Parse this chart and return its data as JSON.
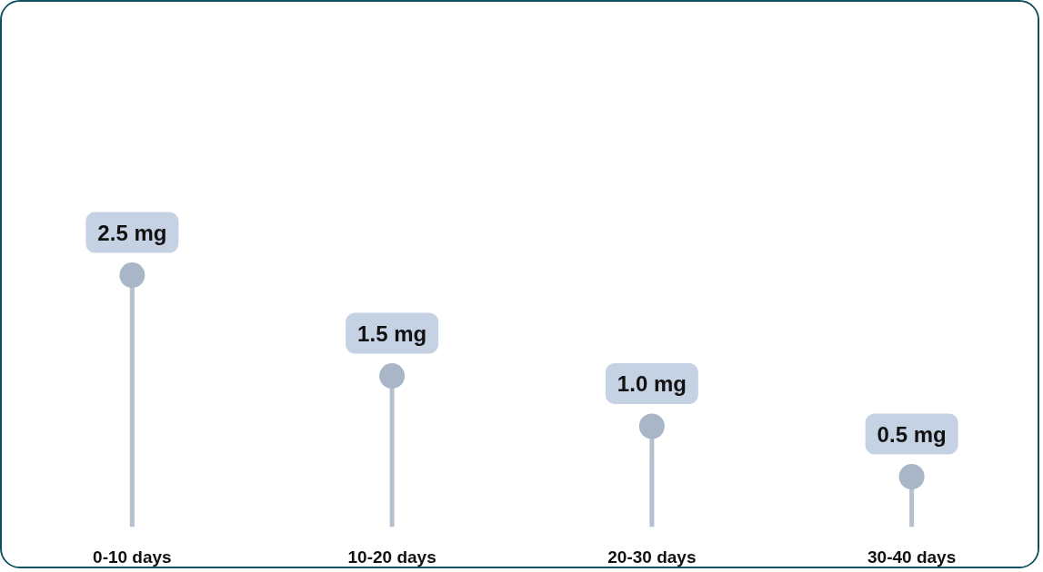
{
  "chart_data": {
    "type": "lollipop",
    "categories": [
      "0-10 days",
      "10-20 days",
      "20-30 days",
      "30-40 days"
    ],
    "values": [
      2.5,
      1.5,
      1.0,
      0.5
    ],
    "value_labels": [
      "2.5 mg",
      "1.5 mg",
      "1.0 mg",
      "0.5 mg"
    ],
    "color": "#a9b6c7",
    "marker": "circle",
    "tick_labels": "x"
  }
}
